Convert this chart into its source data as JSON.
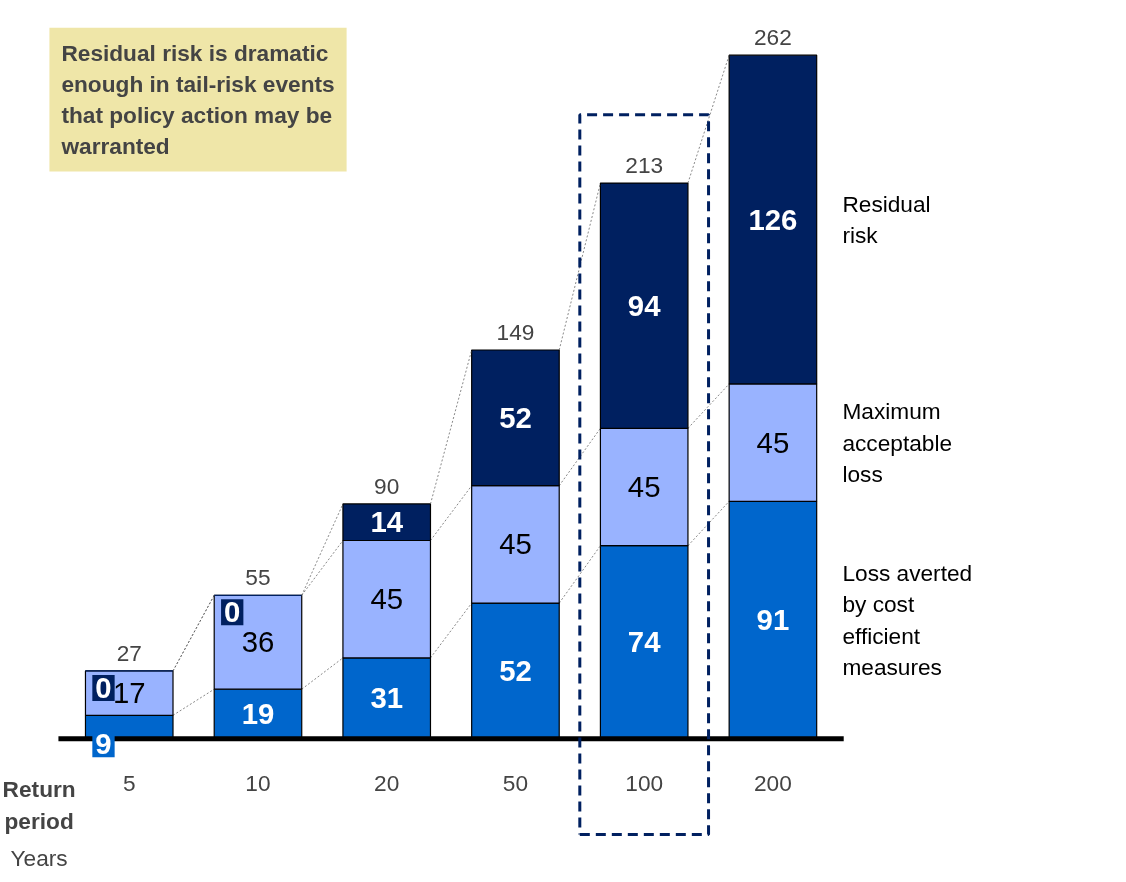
{
  "chart_data": {
    "type": "bar",
    "stacked": true,
    "categories": [
      "5",
      "10",
      "20",
      "50",
      "100",
      "200"
    ],
    "xlabel": "Return period",
    "series": [
      {
        "name": "Loss averted by cost efficient measures",
        "color": "#0066cc",
        "values": [
          9,
          19,
          31,
          52,
          74,
          91
        ]
      },
      {
        "name": "Maximum acceptable loss",
        "color": "#99b3ff",
        "values": [
          17,
          36,
          45,
          45,
          45,
          45
        ]
      },
      {
        "name": "Residual risk",
        "color": "#002060",
        "values": [
          0,
          0,
          14,
          52,
          94,
          126
        ]
      }
    ],
    "totals": [
      "27",
      "55",
      "90",
      "149",
      "213",
      "262"
    ],
    "data_labels": true,
    "legend": "right",
    "tick_labels": "x",
    "grid": false,
    "annotations": [
      "Residual risk is dramatic enough in tail-risk events that policy action may be warranted",
      "Years"
    ]
  }
}
